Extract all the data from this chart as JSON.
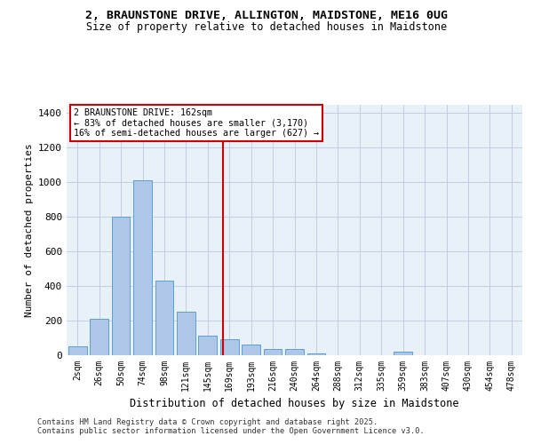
{
  "title_line1": "2, BRAUNSTONE DRIVE, ALLINGTON, MAIDSTONE, ME16 0UG",
  "title_line2": "Size of property relative to detached houses in Maidstone",
  "xlabel": "Distribution of detached houses by size in Maidstone",
  "ylabel": "Number of detached properties",
  "footer_line1": "Contains HM Land Registry data © Crown copyright and database right 2025.",
  "footer_line2": "Contains public sector information licensed under the Open Government Licence v3.0.",
  "annotation_title": "2 BRAUNSTONE DRIVE: 162sqm",
  "annotation_line1": "← 83% of detached houses are smaller (3,170)",
  "annotation_line2": "16% of semi-detached houses are larger (627) →",
  "bar_color": "#aec6e8",
  "bar_edge_color": "#5a9fd4",
  "vline_color": "#cc0000",
  "bg_color": "#e8f0f8",
  "grid_color": "#c0cfe0",
  "categories": [
    "2sqm",
    "26sqm",
    "50sqm",
    "74sqm",
    "98sqm",
    "121sqm",
    "145sqm",
    "169sqm",
    "193sqm",
    "216sqm",
    "240sqm",
    "264sqm",
    "288sqm",
    "312sqm",
    "335sqm",
    "359sqm",
    "383sqm",
    "407sqm",
    "430sqm",
    "454sqm",
    "478sqm"
  ],
  "bar_values": [
    50,
    210,
    800,
    1010,
    430,
    250,
    115,
    90,
    60,
    35,
    35,
    10,
    0,
    0,
    0,
    20,
    0,
    0,
    0,
    0,
    0
  ],
  "ylim": [
    0,
    1450
  ],
  "yticks": [
    0,
    200,
    400,
    600,
    800,
    1000,
    1200,
    1400
  ],
  "red_line_x": 6.708
}
